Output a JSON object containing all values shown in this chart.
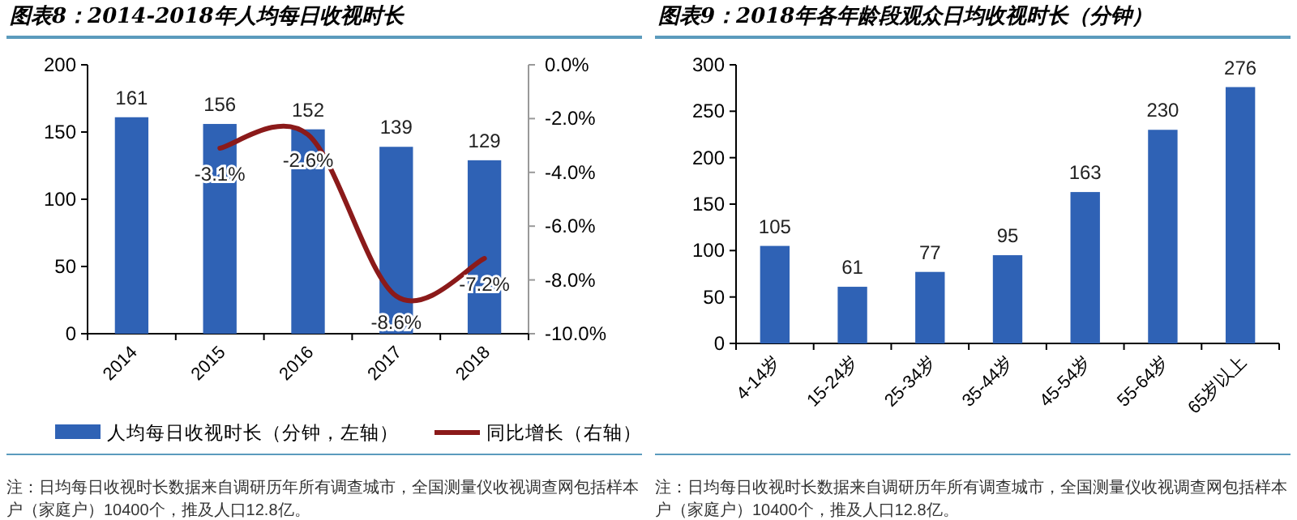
{
  "chart_data": [
    {
      "type": "bar",
      "title": "图表8：2014-2018年人均每日收视时长",
      "categories": [
        "2014",
        "2015",
        "2016",
        "2017",
        "2018"
      ],
      "series": [
        {
          "name": "人均每日收视时长（分钟，左轴）",
          "color": "#2f62b5",
          "values": [
            161,
            156,
            152,
            139,
            129
          ],
          "value_labels": [
            "161",
            "156",
            "152",
            "139",
            "129"
          ]
        },
        {
          "name": "同比增长（右轴）",
          "type": "line",
          "axis": "y2",
          "color": "#8b1a1a",
          "values": [
            null,
            -3.1,
            -2.6,
            -8.6,
            -7.2
          ],
          "value_labels": [
            null,
            "-3.1%",
            "-2.6%",
            "-8.6%",
            "-7.2%"
          ]
        }
      ],
      "ylim": [
        0,
        200
      ],
      "yticks": [
        0,
        50,
        100,
        150,
        200
      ],
      "y2lim": [
        -10,
        0
      ],
      "y2ticks": [
        {
          "value": 0,
          "label": "0.0%"
        },
        {
          "value": -2,
          "label": "-2.0%"
        },
        {
          "value": -4,
          "label": "-4.0%"
        },
        {
          "value": -6,
          "label": "-6.0%"
        },
        {
          "value": -8,
          "label": "-8.0%"
        },
        {
          "value": -10,
          "label": "-10.0%"
        }
      ],
      "legend": "bottom",
      "annotations": [
        "注：日均每日收视时长数据来自调研历年所有调查城市，全国测量仪收视调查网包括样本户（家庭户）10400个，推及人口12.8亿。"
      ]
    },
    {
      "type": "bar",
      "title": "图表9：2018年各年龄段观众日均收视时长（分钟）",
      "categories": [
        "4-14岁",
        "15-24岁",
        "25-34岁",
        "35-44岁",
        "45-54岁",
        "55-64岁",
        "65岁以上"
      ],
      "series": [
        {
          "color": "#2f62b5",
          "values": [
            105,
            61,
            77,
            95,
            163,
            230,
            276
          ],
          "value_labels": [
            "105",
            "61",
            "77",
            "95",
            "163",
            "230",
            "276"
          ]
        }
      ],
      "ylim": [
        0,
        300
      ],
      "yticks": [
        0,
        50,
        100,
        150,
        200,
        250,
        300
      ],
      "annotations": [
        "注：日均每日收视时长数据来自调研历年所有调查城市，全国测量仪收视调查网包括样本户（家庭户）10400个，推及人口12.8亿。"
      ]
    }
  ]
}
